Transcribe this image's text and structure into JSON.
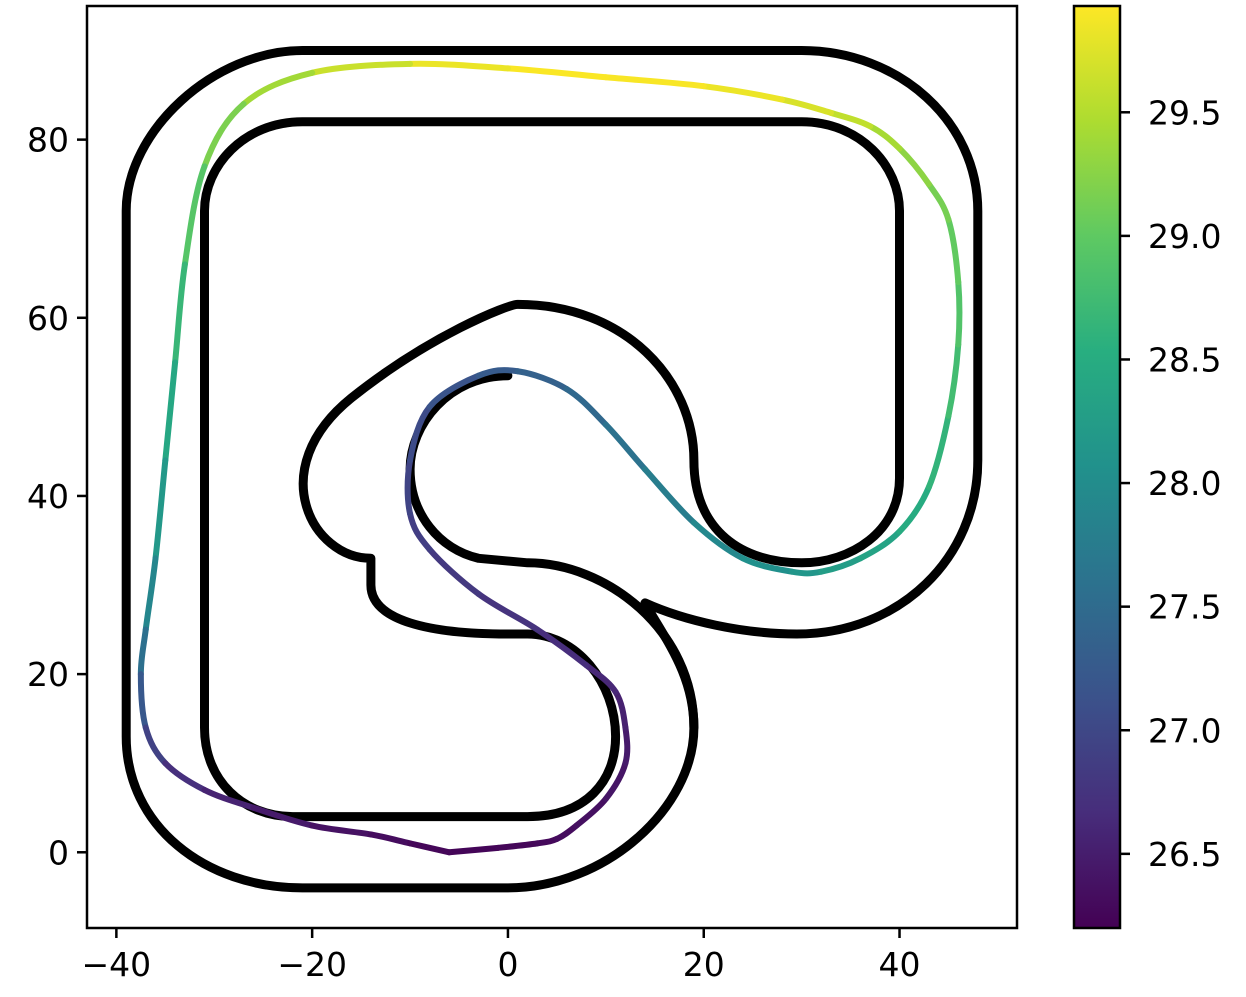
{
  "chart_data": {
    "type": "line",
    "title": "",
    "xlabel": "",
    "ylabel": "",
    "xlim": [
      -43,
      52
    ],
    "ylim": [
      -8.5,
      95
    ],
    "xticks": [
      -40,
      -20,
      0,
      20,
      40
    ],
    "xtick_labels": [
      "−40",
      "−20",
      "0",
      "20",
      "40"
    ],
    "yticks": [
      0,
      20,
      40,
      60,
      80
    ],
    "ytick_labels": [
      "0",
      "20",
      "40",
      "60",
      "80"
    ],
    "grid": false,
    "legend": "none",
    "colorbar": {
      "cmap": "viridis",
      "range": [
        26.2,
        29.93
      ],
      "ticks": [
        26.5,
        27.0,
        27.5,
        28.0,
        28.5,
        29.0,
        29.5
      ],
      "tick_labels": [
        "26.5",
        "27.0",
        "27.5",
        "28.0",
        "28.5",
        "29.0",
        "29.5"
      ]
    },
    "series": [
      {
        "kind": "track-outer-boundary",
        "color": "#000000",
        "x": [
          -21,
          -16,
          0,
          5,
          19,
          19,
          29.5,
          48,
          48,
          38,
          22,
          22,
          -30,
          -39,
          -39,
          -30,
          -21
        ],
        "y": [
          -4,
          -4,
          -4,
          -4,
          15,
          26,
          24.5,
          44,
          72,
          90,
          90,
          90,
          90,
          81,
          13,
          -1,
          -4
        ],
        "path": [
          [
            "M",
            -21,
            -4
          ],
          [
            "L",
            0,
            -4
          ],
          [
            "C",
            10,
            -4,
            19,
            5,
            19,
            14
          ],
          [
            "C",
            19,
            20,
            16,
            24,
            14,
            28
          ],
          [
            "C",
            18,
            26,
            24,
            24.5,
            29.5,
            24.5
          ],
          [
            "C",
            40,
            24.5,
            48,
            33,
            48,
            44
          ],
          [
            "L",
            48,
            72
          ],
          [
            "C",
            48,
            82,
            40,
            90,
            30,
            90
          ],
          [
            "L",
            -21,
            90
          ],
          [
            "C",
            -30,
            90,
            -39,
            81,
            -39,
            72
          ],
          [
            "L",
            -39,
            13
          ],
          [
            "C",
            -39,
            3,
            -31,
            -4,
            -21,
            -4
          ],
          [
            "Z"
          ]
        ]
      },
      {
        "kind": "track-inner-boundary",
        "color": "#000000",
        "path": [
          [
            "M",
            -22,
            4
          ],
          [
            "L",
            2,
            4
          ],
          [
            "C",
            8,
            4,
            11,
            8,
            11,
            13
          ],
          [
            "C",
            11,
            19,
            7,
            24.5,
            2,
            24.5
          ],
          [
            "L",
            0,
            24.5
          ],
          [
            "C",
            -8,
            24.5,
            -14,
            26,
            -14,
            30
          ],
          [
            "L",
            -14,
            33
          ],
          [
            "C",
            -20,
            33,
            -25,
            43,
            -16,
            51
          ],
          [
            "C",
            -8,
            58,
            0,
            61.5,
            1,
            61.5
          ],
          [
            "C",
            12,
            61.5,
            19,
            53,
            19,
            44
          ],
          [
            "C",
            19,
            36,
            24,
            32.5,
            30,
            32.5
          ],
          [
            "C",
            35,
            32.5,
            40,
            36,
            40,
            42
          ],
          [
            "L",
            40,
            72
          ],
          [
            "C",
            40,
            77,
            36,
            82,
            30,
            82
          ],
          [
            "L",
            -21,
            82
          ],
          [
            "C",
            -27,
            82,
            -31,
            77,
            -31,
            72
          ],
          [
            "L",
            -31,
            14
          ],
          [
            "C",
            -31,
            8,
            -27,
            4,
            -22,
            4
          ],
          [
            "Z"
          ]
        ]
      },
      {
        "kind": "track-center-hole",
        "color": "#000000",
        "path": [
          [
            "M",
            0,
            53.5
          ],
          [
            "C",
            -6,
            53.5,
            -10,
            48,
            -10,
            43
          ],
          [
            "C",
            -10,
            38,
            -7,
            34,
            -3,
            33
          ],
          [
            "L",
            2,
            32.5
          ],
          [
            "C",
            10,
            32.5,
            19,
            25,
            19,
            14
          ]
        ]
      },
      {
        "kind": "trajectory",
        "colored_by": "speed",
        "x": [
          -6,
          -1,
          3,
          5,
          7,
          10,
          12,
          12,
          11,
          8,
          3,
          -3,
          -8,
          -10,
          -10,
          -8,
          -3,
          1,
          6,
          10,
          14,
          19,
          24,
          29,
          32,
          36,
          40,
          43,
          45,
          46,
          46,
          45,
          43,
          40,
          37,
          33,
          28,
          20,
          10,
          0,
          -10,
          -20,
          -27,
          -31,
          -33,
          -34,
          -35,
          -36,
          -37,
          -37.5,
          -37,
          -35,
          -31,
          -26,
          -20,
          -14,
          -10,
          -6
        ],
        "y": [
          0,
          0.5,
          1,
          1.5,
          3,
          6,
          10,
          14,
          18,
          21,
          25,
          29,
          34,
          38,
          44,
          50,
          53.5,
          54,
          52,
          48,
          43,
          37,
          33,
          31.5,
          31.5,
          33,
          36,
          41,
          49,
          57,
          64,
          71,
          75,
          79,
          81.5,
          83,
          84.5,
          86,
          87,
          88,
          88.5,
          87.5,
          84,
          77,
          66,
          55,
          44,
          33,
          25,
          20,
          14,
          10,
          7,
          5,
          3,
          2,
          1,
          0
        ],
        "values": [
          26.24,
          26.25,
          26.27,
          26.3,
          26.33,
          26.38,
          26.44,
          26.5,
          26.58,
          26.65,
          26.72,
          26.78,
          26.85,
          26.92,
          27.0,
          27.1,
          27.22,
          27.3,
          27.4,
          27.52,
          27.68,
          27.85,
          28.0,
          28.1,
          28.2,
          28.3,
          28.4,
          28.55,
          28.7,
          28.83,
          28.95,
          29.08,
          29.2,
          29.35,
          29.5,
          29.65,
          29.78,
          29.88,
          29.92,
          29.9,
          29.75,
          29.5,
          29.3,
          29.05,
          28.8,
          28.55,
          28.3,
          28.05,
          27.75,
          27.4,
          27.05,
          26.8,
          26.62,
          26.5,
          26.42,
          26.35,
          26.28,
          26.24
        ]
      }
    ]
  }
}
